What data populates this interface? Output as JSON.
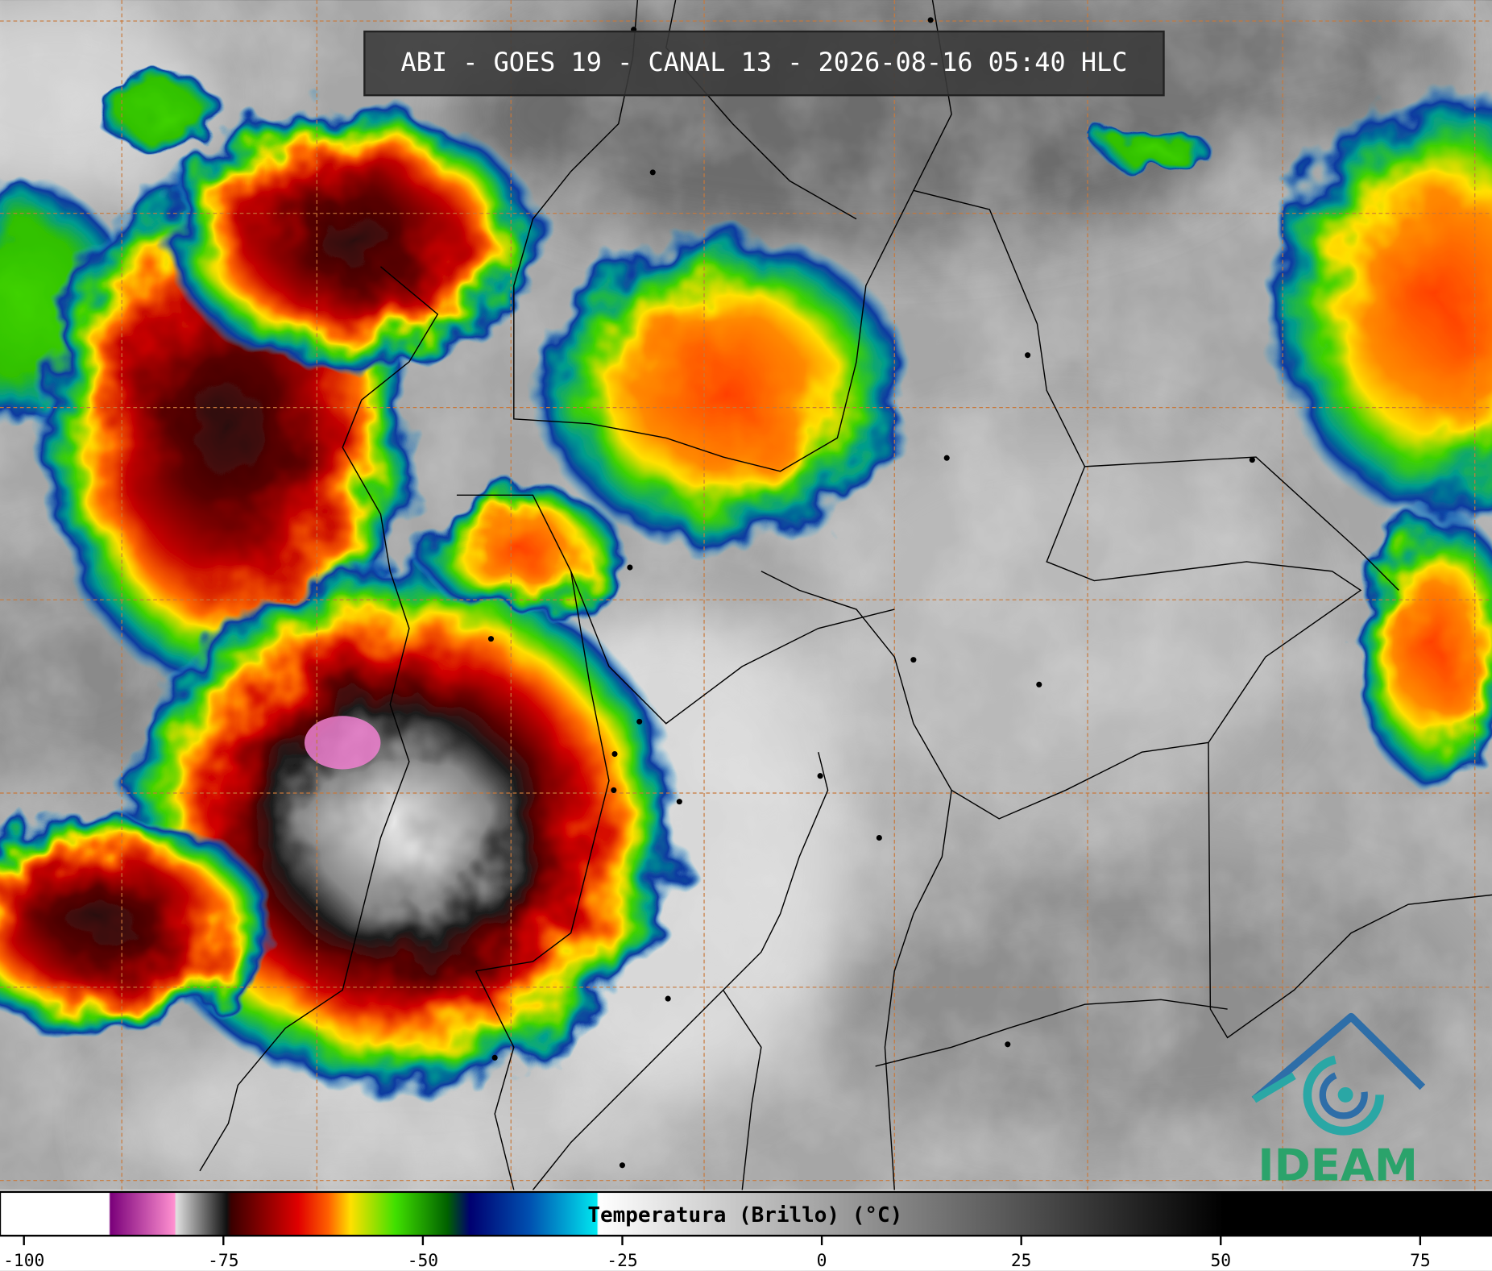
{
  "header": {
    "title": "ABI - GOES 19 - CANAL 13 - 2026-08-16 05:40 HLC"
  },
  "colorbar": {
    "label": "Temperatura (Brillo) (°C)",
    "range": [
      -103,
      84
    ],
    "ticks": [
      -100,
      -75,
      -50,
      -25,
      0,
      25,
      50,
      75
    ]
  },
  "logo": {
    "text": "IDEAM"
  }
}
